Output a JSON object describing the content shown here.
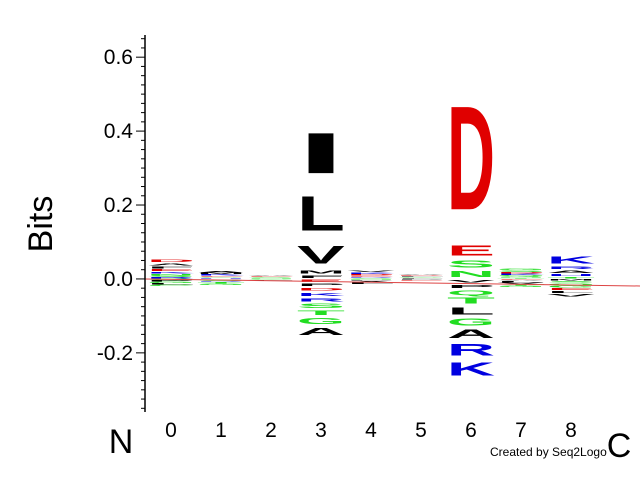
{
  "chart_data": {
    "type": "sequence-logo",
    "ylabel": "Bits",
    "ylim": [
      -0.36,
      0.66
    ],
    "yticks": [
      {
        "value": -0.2,
        "label": "-0.2"
      },
      {
        "value": 0.0,
        "label": "0.0"
      },
      {
        "value": 0.2,
        "label": "0.2"
      },
      {
        "value": 0.4,
        "label": "0.4"
      },
      {
        "value": 0.6,
        "label": "0.6"
      }
    ],
    "terminal_labels": {
      "n": "N",
      "c": "C"
    },
    "positions": [
      "0",
      "1",
      "2",
      "3",
      "4",
      "5",
      "6",
      "7",
      "8"
    ],
    "credit": "Created by Seq2Logo",
    "colors": {
      "acidic": "#e00000",
      "basic": "#0000e0",
      "polar": "#22dd22",
      "hydrophobic": "#000000",
      "other": "#cc00cc"
    },
    "columns": [
      {
        "position": "0",
        "above": [
          {
            "aa": "R",
            "bits": 0.004,
            "cls": "basic"
          },
          {
            "aa": "S",
            "bits": 0.005,
            "cls": "polar"
          },
          {
            "aa": "N",
            "bits": 0.005,
            "cls": "polar"
          },
          {
            "aa": "K",
            "bits": 0.006,
            "cls": "basic"
          },
          {
            "aa": "E",
            "bits": 0.007,
            "cls": "acidic"
          },
          {
            "aa": "F",
            "bits": 0.008,
            "cls": "hydrophobic"
          },
          {
            "aa": "A",
            "bits": 0.008,
            "cls": "hydrophobic"
          },
          {
            "aa": "D",
            "bits": 0.012,
            "cls": "acidic"
          }
        ],
        "below": [
          {
            "aa": "Q",
            "bits": 0.004,
            "cls": "polar"
          },
          {
            "aa": "P",
            "bits": 0.004,
            "cls": "hydrophobic"
          },
          {
            "aa": "G",
            "bits": 0.004,
            "cls": "polar"
          },
          {
            "aa": "L",
            "bits": 0.004,
            "cls": "hydrophobic"
          },
          {
            "aa": "C",
            "bits": 0.004,
            "cls": "polar"
          }
        ]
      },
      {
        "position": "1",
        "above": [
          {
            "aa": "H",
            "bits": 0.003,
            "cls": "basic"
          },
          {
            "aa": "G",
            "bits": 0.003,
            "cls": "polar"
          },
          {
            "aa": "E",
            "bits": 0.003,
            "cls": "acidic"
          },
          {
            "aa": "K",
            "bits": 0.004,
            "cls": "basic"
          },
          {
            "aa": "M",
            "bits": 0.004,
            "cls": "hydrophobic"
          },
          {
            "aa": "A",
            "bits": 0.005,
            "cls": "hydrophobic"
          }
        ],
        "below": [
          {
            "aa": "P",
            "bits": 0.003,
            "cls": "hydrophobic"
          },
          {
            "aa": "S",
            "bits": 0.003,
            "cls": "polar"
          },
          {
            "aa": "R",
            "bits": 0.003,
            "cls": "basic"
          },
          {
            "aa": "T",
            "bits": 0.004,
            "cls": "polar"
          },
          {
            "aa": "G",
            "bits": 0.004,
            "cls": "polar"
          }
        ]
      },
      {
        "position": "2",
        "above": [
          {
            "aa": "N",
            "bits": 0.002,
            "cls": "polar"
          },
          {
            "aa": "S",
            "bits": 0.002,
            "cls": "polar"
          },
          {
            "aa": "E",
            "bits": 0.003,
            "cls": "acidic"
          },
          {
            "aa": "A",
            "bits": 0.003,
            "cls": "hydrophobic"
          }
        ],
        "below": [
          {
            "aa": "G",
            "bits": 0.002,
            "cls": "polar"
          },
          {
            "aa": "L",
            "bits": 0.002,
            "cls": "hydrophobic"
          }
        ]
      },
      {
        "position": "3",
        "above": [
          {
            "aa": "F",
            "bits": 0.012,
            "cls": "hydrophobic"
          },
          {
            "aa": "M",
            "bits": 0.015,
            "cls": "hydrophobic"
          },
          {
            "aa": "V",
            "bits": 0.075,
            "cls": "hydrophobic"
          },
          {
            "aa": "L",
            "bits": 0.15,
            "cls": "hydrophobic"
          },
          {
            "aa": "I",
            "bits": 0.175,
            "cls": "hydrophobic"
          }
        ],
        "below": [
          {
            "aa": "E",
            "bits": 0.01,
            "cls": "acidic"
          },
          {
            "aa": "P",
            "bits": 0.012,
            "cls": "hydrophobic"
          },
          {
            "aa": "D",
            "bits": 0.012,
            "cls": "acidic"
          },
          {
            "aa": "K",
            "bits": 0.015,
            "cls": "basic"
          },
          {
            "aa": "R",
            "bits": 0.015,
            "cls": "basic"
          },
          {
            "aa": "S",
            "bits": 0.018,
            "cls": "polar"
          },
          {
            "aa": "T",
            "bits": 0.02,
            "cls": "polar"
          },
          {
            "aa": "G",
            "bits": 0.025,
            "cls": "polar"
          },
          {
            "aa": "A",
            "bits": 0.03,
            "cls": "hydrophobic"
          }
        ]
      },
      {
        "position": "4",
        "above": [
          {
            "aa": "S",
            "bits": 0.003,
            "cls": "polar"
          },
          {
            "aa": "R",
            "bits": 0.003,
            "cls": "basic"
          },
          {
            "aa": "E",
            "bits": 0.003,
            "cls": "acidic"
          },
          {
            "aa": "D",
            "bits": 0.004,
            "cls": "acidic"
          },
          {
            "aa": "K",
            "bits": 0.004,
            "cls": "basic"
          },
          {
            "aa": "V",
            "bits": 0.006,
            "cls": "hydrophobic"
          }
        ],
        "below": [
          {
            "aa": "N",
            "bits": 0.003,
            "cls": "polar"
          },
          {
            "aa": "P",
            "bits": 0.003,
            "cls": "hydrophobic"
          },
          {
            "aa": "A",
            "bits": 0.004,
            "cls": "hydrophobic"
          },
          {
            "aa": "L",
            "bits": 0.004,
            "cls": "hydrophobic"
          }
        ]
      },
      {
        "position": "5",
        "above": [
          {
            "aa": "F",
            "bits": 0.002,
            "cls": "hydrophobic"
          },
          {
            "aa": "G",
            "bits": 0.002,
            "cls": "polar"
          },
          {
            "aa": "L",
            "bits": 0.003,
            "cls": "hydrophobic"
          },
          {
            "aa": "D",
            "bits": 0.003,
            "cls": "acidic"
          },
          {
            "aa": "A",
            "bits": 0.003,
            "cls": "hydrophobic"
          }
        ],
        "below": [
          {
            "aa": "P",
            "bits": 0.002,
            "cls": "hydrophobic"
          },
          {
            "aa": "E",
            "bits": 0.003,
            "cls": "acidic"
          }
        ]
      },
      {
        "position": "6",
        "above": [
          {
            "aa": "N",
            "bits": 0.025,
            "cls": "polar"
          },
          {
            "aa": "S",
            "bits": 0.03,
            "cls": "polar"
          },
          {
            "aa": "E",
            "bits": 0.045,
            "cls": "acidic"
          },
          {
            "aa": "D",
            "bits": 0.45,
            "cls": "acidic"
          }
        ],
        "below": [
          {
            "aa": "V",
            "bits": 0.012,
            "cls": "hydrophobic"
          },
          {
            "aa": "P",
            "bits": 0.015,
            "cls": "hydrophobic"
          },
          {
            "aa": "Q",
            "bits": 0.02,
            "cls": "polar"
          },
          {
            "aa": "T",
            "bits": 0.025,
            "cls": "polar"
          },
          {
            "aa": "L",
            "bits": 0.03,
            "cls": "hydrophobic"
          },
          {
            "aa": "G",
            "bits": 0.03,
            "cls": "polar"
          },
          {
            "aa": "A",
            "bits": 0.035,
            "cls": "hydrophobic"
          },
          {
            "aa": "R",
            "bits": 0.05,
            "cls": "basic"
          },
          {
            "aa": "K",
            "bits": 0.055,
            "cls": "basic"
          }
        ]
      },
      {
        "position": "7",
        "above": [
          {
            "aa": "T",
            "bits": 0.003,
            "cls": "polar"
          },
          {
            "aa": "N",
            "bits": 0.003,
            "cls": "polar"
          },
          {
            "aa": "Q",
            "bits": 0.004,
            "cls": "polar"
          },
          {
            "aa": "K",
            "bits": 0.004,
            "cls": "basic"
          },
          {
            "aa": "D",
            "bits": 0.004,
            "cls": "acidic"
          },
          {
            "aa": "S",
            "bits": 0.005,
            "cls": "polar"
          },
          {
            "aa": "G",
            "bits": 0.006,
            "cls": "polar"
          }
        ],
        "below": [
          {
            "aa": "E",
            "bits": 0.003,
            "cls": "acidic"
          },
          {
            "aa": "A",
            "bits": 0.003,
            "cls": "hydrophobic"
          },
          {
            "aa": "L",
            "bits": 0.004,
            "cls": "hydrophobic"
          },
          {
            "aa": "V",
            "bits": 0.004,
            "cls": "hydrophobic"
          },
          {
            "aa": "T",
            "bits": 0.004,
            "cls": "polar"
          },
          {
            "aa": "G",
            "bits": 0.005,
            "cls": "polar"
          }
        ]
      },
      {
        "position": "8",
        "above": [
          {
            "aa": "T",
            "bits": 0.006,
            "cls": "polar"
          },
          {
            "aa": "H",
            "bits": 0.008,
            "cls": "basic"
          },
          {
            "aa": "A",
            "bits": 0.01,
            "cls": "hydrophobic"
          },
          {
            "aa": "R",
            "bits": 0.012,
            "cls": "basic"
          },
          {
            "aa": "K",
            "bits": 0.03,
            "cls": "basic"
          }
        ],
        "below": [
          {
            "aa": "M",
            "bits": 0.005,
            "cls": "hydrophobic"
          },
          {
            "aa": "S",
            "bits": 0.006,
            "cls": "polar"
          },
          {
            "aa": "Q",
            "bits": 0.006,
            "cls": "polar"
          },
          {
            "aa": "G",
            "bits": 0.007,
            "cls": "polar"
          },
          {
            "aa": "E",
            "bits": 0.008,
            "cls": "acidic"
          },
          {
            "aa": "L",
            "bits": 0.008,
            "cls": "hydrophobic"
          },
          {
            "aa": "V",
            "bits": 0.01,
            "cls": "hydrophobic"
          }
        ]
      }
    ]
  }
}
